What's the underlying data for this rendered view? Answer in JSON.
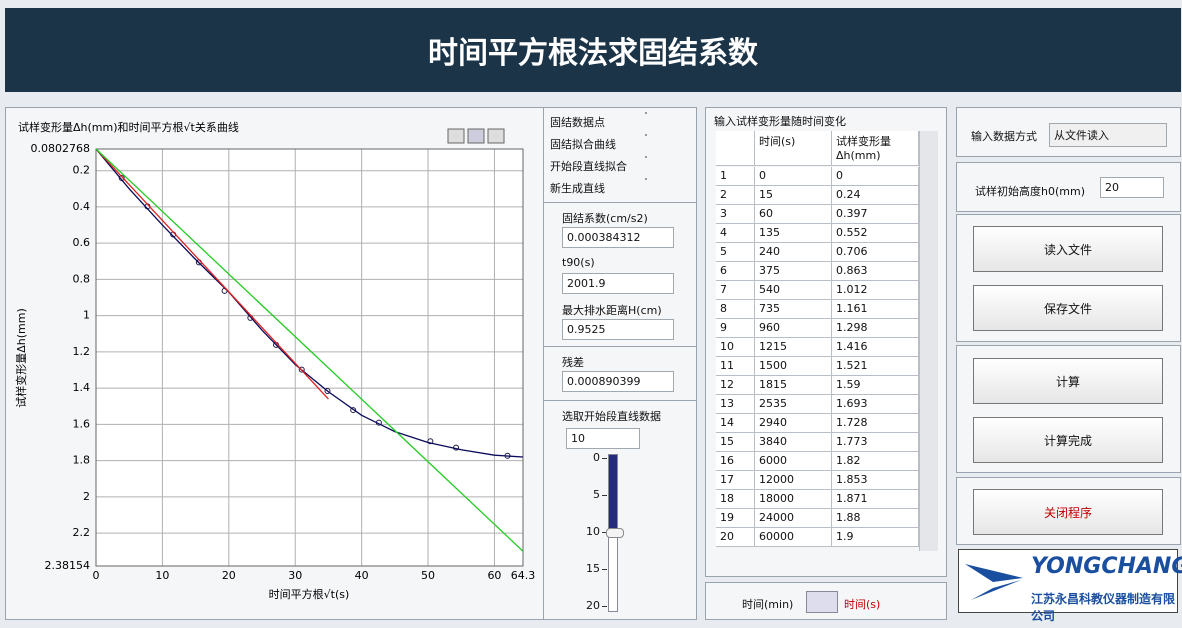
{
  "header": {
    "title": "时间平方根法求固结系数"
  },
  "chart_data": {
    "type": "line",
    "title": "试样变形量Δh(mm)和时间平方根√t关系曲线",
    "x_label": "时间平方根√t(s)",
    "y_label": "试样变形量Δh(mm)",
    "xlim": [
      0,
      64.3
    ],
    "ylim": [
      0.0802768,
      2.38154
    ],
    "y_inverted": true,
    "grid": true,
    "xticks": [
      0,
      10,
      20,
      30,
      40,
      50,
      60,
      64.3
    ],
    "yticks": [
      0.0802768,
      0.2,
      0.4,
      0.6,
      0.8,
      1,
      1.2,
      1.4,
      1.6,
      1.8,
      2,
      2.2,
      2.38154
    ],
    "series": [
      {
        "name": "固结数据点",
        "color": "#1a1a4a",
        "marker": "circle",
        "line": false,
        "x": [
          3.87,
          7.75,
          11.62,
          15.49,
          19.36,
          23.24,
          27.11,
          30.98,
          34.86,
          38.73,
          42.6,
          50.35,
          54.22,
          61.97
        ],
        "values": [
          0.24,
          0.397,
          0.552,
          0.706,
          0.863,
          1.012,
          1.161,
          1.298,
          1.416,
          1.521,
          1.59,
          1.693,
          1.728,
          1.773
        ]
      },
      {
        "name": "固结拟合曲线",
        "color": "#0a0a5a",
        "line": true,
        "x": [
          0,
          5,
          10,
          15,
          20,
          25,
          30,
          35,
          40,
          45,
          50,
          55,
          60,
          64.3
        ],
        "values": [
          0.08,
          0.3,
          0.5,
          0.69,
          0.87,
          1.08,
          1.27,
          1.42,
          1.55,
          1.64,
          1.7,
          1.74,
          1.77,
          1.78
        ]
      },
      {
        "name": "开始段直线拟合",
        "color": "#e02020",
        "line": true,
        "x": [
          0,
          35
        ],
        "values": [
          0.08,
          1.46
        ]
      },
      {
        "name": "新生成直线",
        "color": "#22cc22",
        "line": true,
        "x": [
          0,
          64.3
        ],
        "values": [
          0.08,
          2.3
        ]
      }
    ]
  },
  "results": {
    "fields": [
      {
        "label": "固结系数(cm/s2)",
        "value": 0.000384312
      },
      {
        "label": "t90(s)",
        "value": 2001.9
      },
      {
        "label": "最大排水距离H(cm)",
        "value": 0.9525
      },
      {
        "label": "残差",
        "value": 0.000890399
      }
    ]
  },
  "start_points": {
    "label": "选取开始段直线数据",
    "value": 10,
    "ticks": [
      0,
      5,
      10,
      15,
      20
    ]
  },
  "table": {
    "title": "输入试样变形量随时间变化",
    "headers": [
      "时间(s)",
      "试样变形量Δh(mm)"
    ],
    "rows": [
      [
        1,
        0,
        0
      ],
      [
        2,
        15,
        0.24
      ],
      [
        3,
        60,
        0.397
      ],
      [
        4,
        135,
        0.552
      ],
      [
        5,
        240,
        0.706
      ],
      [
        6,
        375,
        0.863
      ],
      [
        7,
        540,
        1.012
      ],
      [
        8,
        735,
        1.161
      ],
      [
        9,
        960,
        1.298
      ],
      [
        10,
        1215,
        1.416
      ],
      [
        11,
        1500,
        1.521
      ],
      [
        12,
        1815,
        1.59
      ],
      [
        13,
        2535,
        1.693
      ],
      [
        14,
        2940,
        1.728
      ],
      [
        15,
        3840,
        1.773
      ],
      [
        16,
        6000,
        1.82
      ],
      [
        17,
        12000,
        1.853
      ],
      [
        18,
        18000,
        1.871
      ],
      [
        19,
        24000,
        1.88
      ],
      [
        20,
        60000,
        1.9
      ]
    ]
  },
  "time_unit": {
    "options": [
      "时间(min)",
      "时间(s)"
    ]
  },
  "controls": {
    "input_mode": {
      "label": "输入数据方式",
      "value": "从文件读入"
    },
    "initial_height": {
      "label": "试样初始高度h0(mm)",
      "value": 20
    },
    "buttons": [
      "读入文件",
      "保存文件",
      "计算",
      "计算完成",
      "关闭程序"
    ]
  },
  "logo": {
    "brand": "YONGCHANG",
    "company": "江苏永昌科教仪器制造有限公司"
  }
}
